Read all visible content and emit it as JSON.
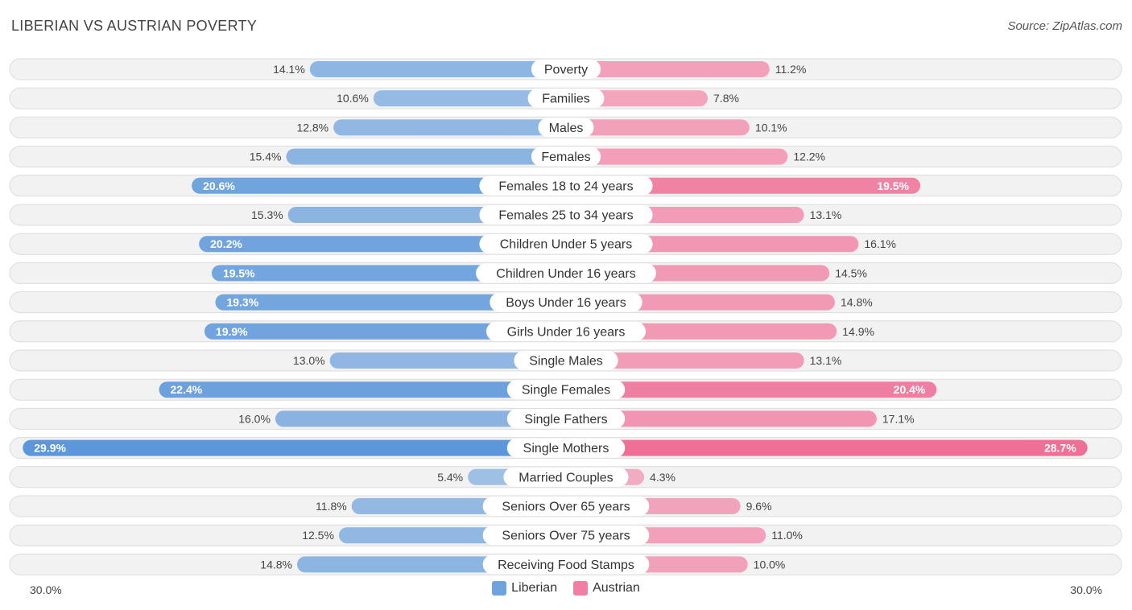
{
  "title": "LIBERIAN VS AUSTRIAN POVERTY",
  "source": "Source: ZipAtlas.com",
  "colors": {
    "liberian": "#6fa3dd",
    "austrian": "#f27fa3",
    "liberian_strong": "#5b97da",
    "austrian_strong": "#ef6c95",
    "row_bg": "#f2f2f2",
    "row_border": "#dcdcdc"
  },
  "axis": {
    "left_label": "30.0%",
    "right_label": "30.0%"
  },
  "legend": [
    {
      "name": "Liberian",
      "color": "#6fa3dd"
    },
    {
      "name": "Austrian",
      "color": "#f27fa3"
    }
  ],
  "chart_data": {
    "type": "bar",
    "orientation": "horizontal-diverging",
    "title": "LIBERIAN VS AUSTRIAN POVERTY",
    "xlim": [
      0,
      30
    ],
    "categories": [
      "Poverty",
      "Families",
      "Males",
      "Females",
      "Females 18 to 24 years",
      "Females 25 to 34 years",
      "Children Under 5 years",
      "Children Under 16 years",
      "Boys Under 16 years",
      "Girls Under 16 years",
      "Single Males",
      "Single Females",
      "Single Fathers",
      "Single Mothers",
      "Married Couples",
      "Seniors Over 65 years",
      "Seniors Over 75 years",
      "Receiving Food Stamps"
    ],
    "series": [
      {
        "name": "Liberian",
        "values": [
          14.1,
          10.6,
          12.8,
          15.4,
          20.6,
          15.3,
          20.2,
          19.5,
          19.3,
          19.9,
          13.0,
          22.4,
          16.0,
          29.9,
          5.4,
          11.8,
          12.5,
          14.8
        ]
      },
      {
        "name": "Austrian",
        "values": [
          11.2,
          7.8,
          10.1,
          12.2,
          19.5,
          13.1,
          16.1,
          14.5,
          14.8,
          14.9,
          13.1,
          20.4,
          17.1,
          28.7,
          4.3,
          9.6,
          11.0,
          10.0
        ]
      }
    ],
    "value_labels_liberian": [
      "14.1%",
      "10.6%",
      "12.8%",
      "15.4%",
      "20.6%",
      "15.3%",
      "20.2%",
      "19.5%",
      "19.3%",
      "19.9%",
      "13.0%",
      "22.4%",
      "16.0%",
      "29.9%",
      "5.4%",
      "11.8%",
      "12.5%",
      "14.8%"
    ],
    "value_labels_austrian": [
      "11.2%",
      "7.8%",
      "10.1%",
      "12.2%",
      "19.5%",
      "13.1%",
      "16.1%",
      "14.5%",
      "14.8%",
      "14.9%",
      "13.1%",
      "20.4%",
      "17.1%",
      "28.7%",
      "4.3%",
      "9.6%",
      "11.0%",
      "10.0%"
    ]
  }
}
